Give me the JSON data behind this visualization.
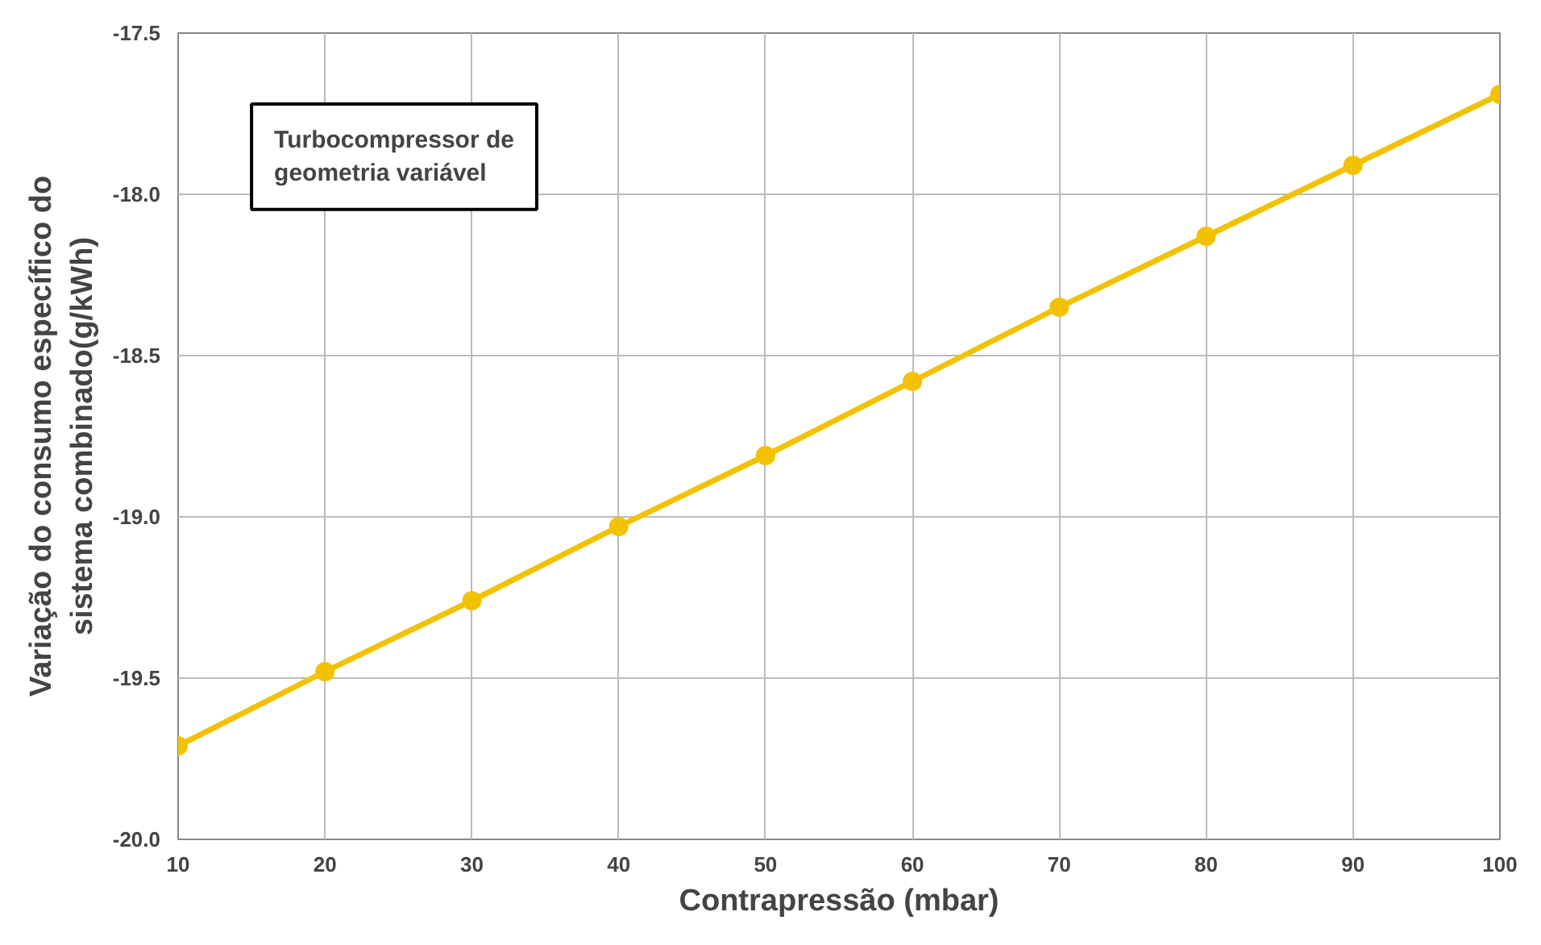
{
  "chart_data": {
    "type": "line",
    "xlabel": "Contrapressão (mbar)",
    "ylabel": "Variação do consumo específico do\nsistema combinado(g/kWh)",
    "x": [
      10,
      20,
      30,
      40,
      50,
      60,
      70,
      80,
      90,
      100
    ],
    "series": [
      {
        "color": "#f2c200",
        "values": [
          -19.71,
          -19.48,
          -19.26,
          -19.03,
          -18.81,
          -18.58,
          -18.35,
          -18.13,
          -17.91,
          -17.69
        ]
      }
    ],
    "xlim": [
      10,
      100
    ],
    "xticks": [
      10,
      20,
      30,
      40,
      50,
      60,
      70,
      80,
      90,
      100
    ],
    "ylim": [
      -20.0,
      -17.5
    ],
    "yticks": [
      {
        "value": -20.0,
        "label": "-20.0"
      },
      {
        "value": -19.5,
        "label": "-19.5"
      },
      {
        "value": -19.0,
        "label": "-19.0"
      },
      {
        "value": -18.5,
        "label": "-18.5"
      },
      {
        "value": -18.0,
        "label": "-18.0"
      },
      {
        "value": -17.5,
        "label": "-17.5"
      }
    ],
    "grid": true,
    "marker": "circle",
    "line_style": "solid",
    "annotations": [
      "Turbocompressor de\ngeometria variável"
    ]
  }
}
